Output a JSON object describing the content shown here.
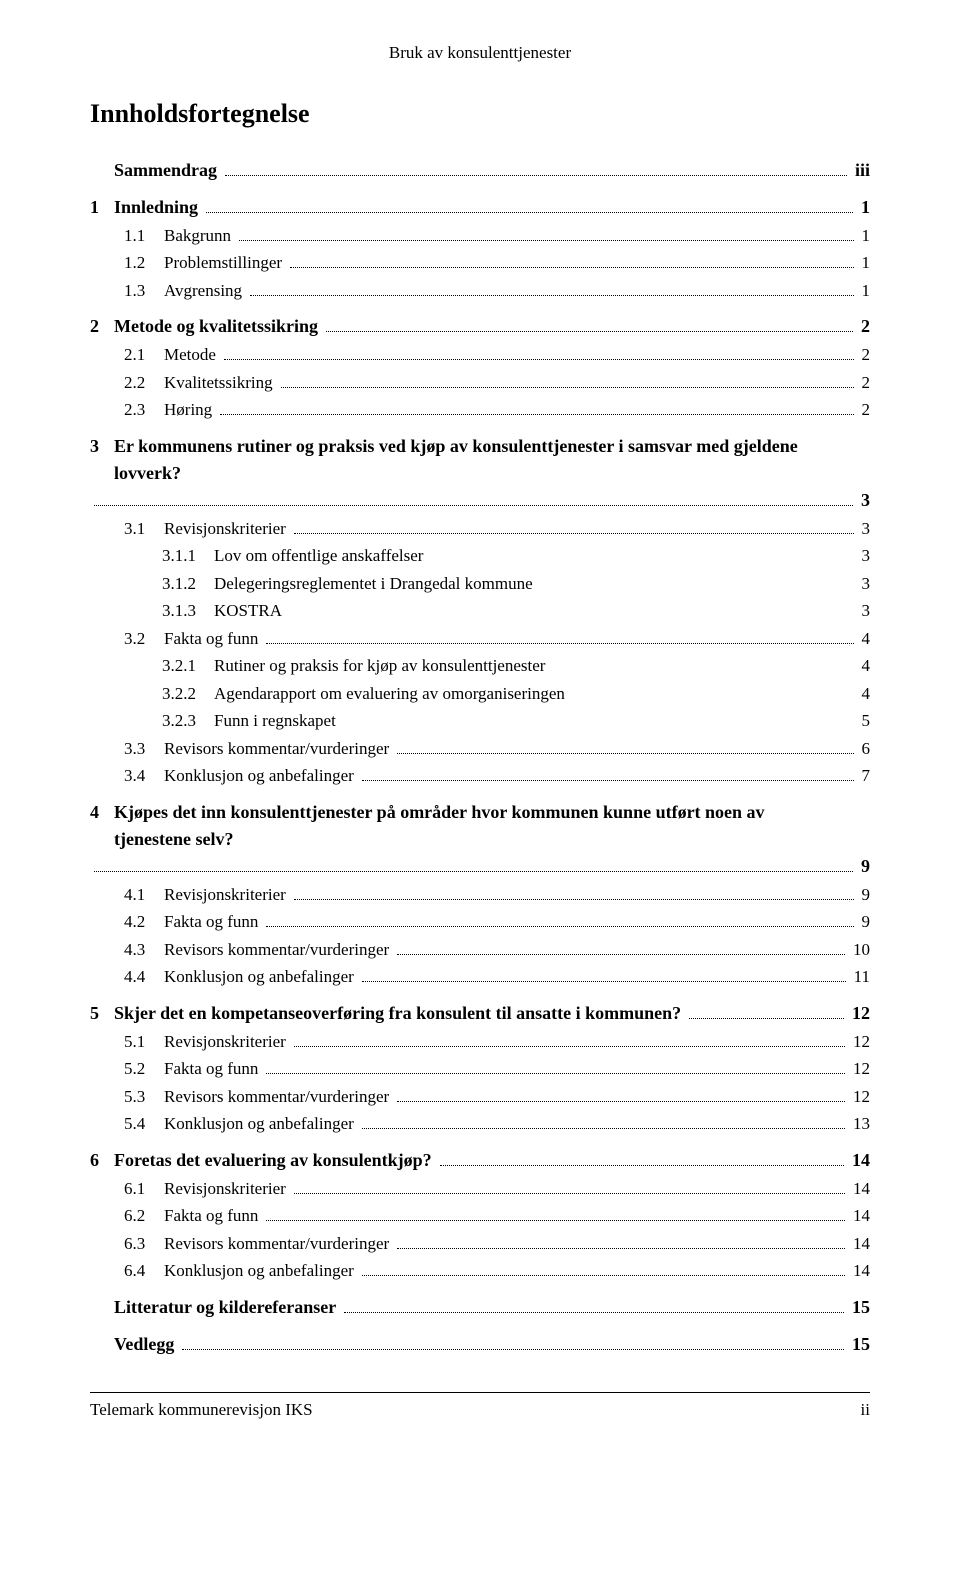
{
  "header": "Bruk av konsulenttjenester",
  "title": "Innholdsfortegnelse",
  "footer_left": "Telemark kommunerevisjon IKS",
  "footer_right": "ii",
  "toc": [
    {
      "level": 0,
      "num": "",
      "label": "Sammendrag",
      "page": "iii",
      "no_num": true
    },
    {
      "level": 0,
      "num": "1",
      "label": "Innledning",
      "page": "1"
    },
    {
      "level": 1,
      "num": "1.1",
      "label": "Bakgrunn",
      "page": "1"
    },
    {
      "level": 1,
      "num": "1.2",
      "label": "Problemstillinger",
      "page": "1"
    },
    {
      "level": 1,
      "num": "1.3",
      "label": "Avgrensing",
      "page": "1"
    },
    {
      "level": 0,
      "num": "2",
      "label": "Metode og kvalitetssikring",
      "page": "2"
    },
    {
      "level": 1,
      "num": "2.1",
      "label": "Metode",
      "page": "2"
    },
    {
      "level": 1,
      "num": "2.2",
      "label": "Kvalitetssikring",
      "page": "2"
    },
    {
      "level": 1,
      "num": "2.3",
      "label": "Høring",
      "page": "2"
    },
    {
      "level": 0,
      "num": "3",
      "label": "Er kommunens rutiner og praksis ved kjøp av konsulenttjenester i samsvar med gjeldene lovverk?",
      "page": "3",
      "wrap": true
    },
    {
      "level": 1,
      "num": "3.1",
      "label": "Revisjonskriterier",
      "page": "3"
    },
    {
      "level": 2,
      "num": "3.1.1",
      "label": "Lov om offentlige anskaffelser",
      "page": "3",
      "nodots": true
    },
    {
      "level": 2,
      "num": "3.1.2",
      "label": "Delegeringsreglementet i Drangedal kommune",
      "page": "3",
      "nodots": true
    },
    {
      "level": 2,
      "num": "3.1.3",
      "label": "KOSTRA",
      "page": "3",
      "nodots": true
    },
    {
      "level": 1,
      "num": "3.2",
      "label": "Fakta og funn",
      "page": "4"
    },
    {
      "level": 2,
      "num": "3.2.1",
      "label": "Rutiner og praksis for kjøp av konsulenttjenester",
      "page": "4",
      "nodots": true
    },
    {
      "level": 2,
      "num": "3.2.2",
      "label": "Agendarapport om evaluering av omorganiseringen",
      "page": "4",
      "nodots": true
    },
    {
      "level": 2,
      "num": "3.2.3",
      "label": "Funn i regnskapet",
      "page": "5",
      "nodots": true
    },
    {
      "level": 1,
      "num": "3.3",
      "label": "Revisors kommentar/vurderinger",
      "page": "6"
    },
    {
      "level": 1,
      "num": "3.4",
      "label": "Konklusjon og anbefalinger",
      "page": "7"
    },
    {
      "level": 0,
      "num": "4",
      "label": "Kjøpes det inn konsulenttjenester på områder hvor kommunen kunne utført noen av tjenestene selv?",
      "page": "9",
      "wrap": true
    },
    {
      "level": 1,
      "num": "4.1",
      "label": "Revisjonskriterier",
      "page": "9"
    },
    {
      "level": 1,
      "num": "4.2",
      "label": "Fakta og funn",
      "page": "9"
    },
    {
      "level": 1,
      "num": "4.3",
      "label": "Revisors kommentar/vurderinger",
      "page": "10"
    },
    {
      "level": 1,
      "num": "4.4",
      "label": "Konklusjon og anbefalinger",
      "page": "11"
    },
    {
      "level": 0,
      "num": "5",
      "label": "Skjer det en kompetanseoverføring fra konsulent til ansatte i kommunen?",
      "page": "12"
    },
    {
      "level": 1,
      "num": "5.1",
      "label": "Revisjonskriterier",
      "page": "12"
    },
    {
      "level": 1,
      "num": "5.2",
      "label": "Fakta og funn",
      "page": "12"
    },
    {
      "level": 1,
      "num": "5.3",
      "label": "Revisors kommentar/vurderinger",
      "page": "12"
    },
    {
      "level": 1,
      "num": "5.4",
      "label": "Konklusjon og anbefalinger",
      "page": "13"
    },
    {
      "level": 0,
      "num": "6",
      "label": "Foretas det evaluering av konsulentkjøp?",
      "page": "14"
    },
    {
      "level": 1,
      "num": "6.1",
      "label": "Revisjonskriterier",
      "page": "14"
    },
    {
      "level": 1,
      "num": "6.2",
      "label": "Fakta og funn",
      "page": "14"
    },
    {
      "level": 1,
      "num": "6.3",
      "label": "Revisors kommentar/vurderinger",
      "page": "14"
    },
    {
      "level": 1,
      "num": "6.4",
      "label": "Konklusjon og anbefalinger",
      "page": "14"
    },
    {
      "level": 0,
      "num": "",
      "label": "Litteratur og kildereferanser",
      "page": "15",
      "no_num": true
    },
    {
      "level": 0,
      "num": "",
      "label": "Vedlegg",
      "page": "15",
      "no_num": true
    }
  ]
}
